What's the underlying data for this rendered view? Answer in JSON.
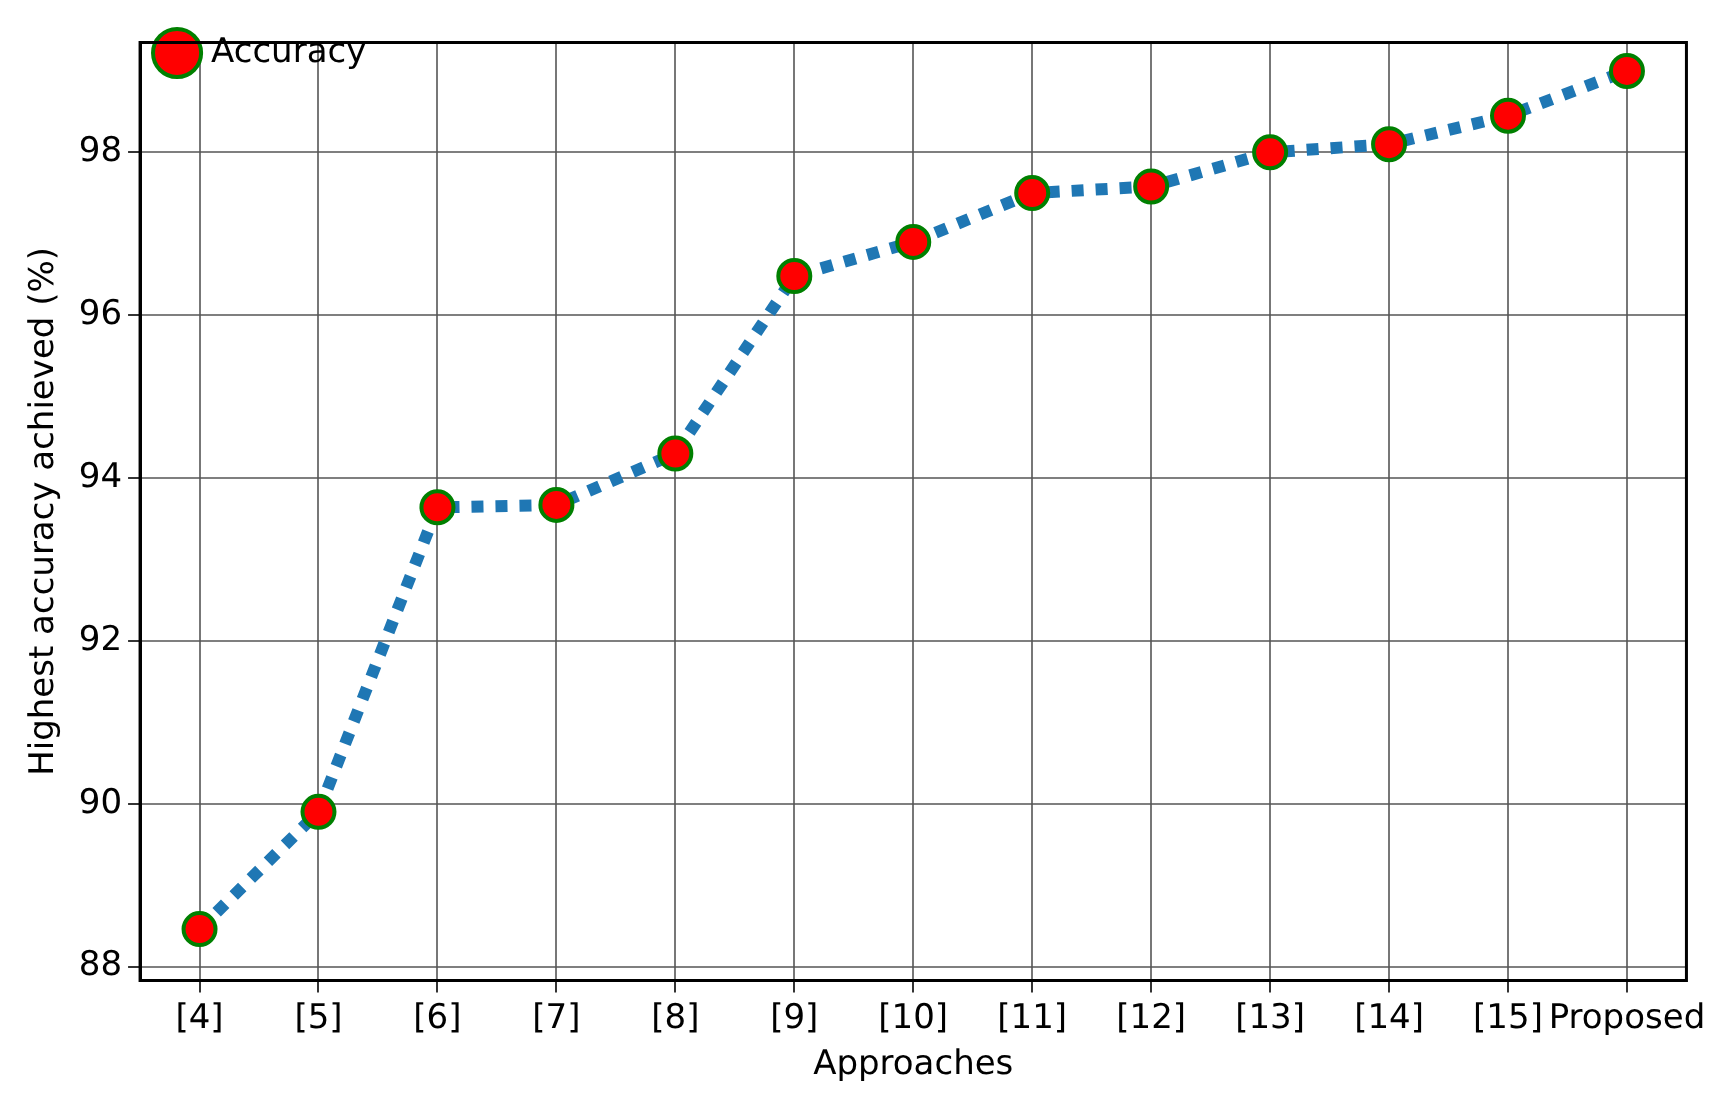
{
  "chart_data": {
    "type": "line",
    "xlabel": "Approaches",
    "ylabel": "Highest accuracy achieved (%)",
    "categories": [
      "[4]",
      "[5]",
      "[6]",
      "[7]",
      "[8]",
      "[9]",
      "[10]",
      "[11]",
      "[12]",
      "[13]",
      "[14]",
      "[15]",
      "Proposed"
    ],
    "series": [
      {
        "name": "Accuracy",
        "color": "#1f77b4",
        "values": [
          88.46,
          89.9,
          93.64,
          93.67,
          94.3,
          96.48,
          96.9,
          97.5,
          97.58,
          98.0,
          98.1,
          98.45,
          99.0
        ]
      }
    ],
    "ylim": [
      87.83,
      99.35
    ],
    "yticks": [
      88,
      90,
      92,
      94,
      96,
      98
    ],
    "grid": true,
    "legend": "top left",
    "marker": "circle",
    "line_style": "dotted"
  }
}
